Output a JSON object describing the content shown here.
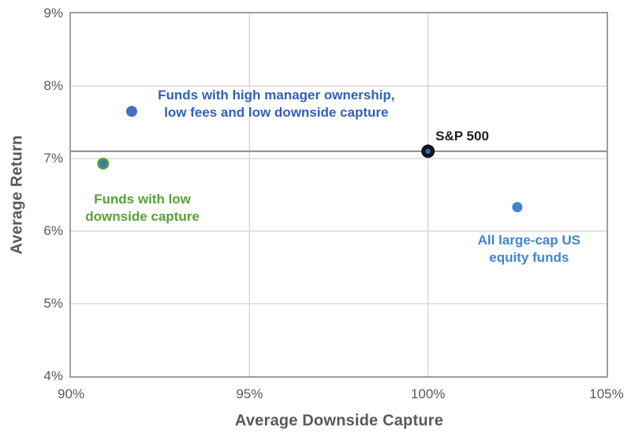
{
  "chart_data": {
    "type": "scatter",
    "xlabel": "Average Downside Capture",
    "ylabel": "Average Return",
    "xlim": [
      90,
      105
    ],
    "ylim": [
      4,
      9
    ],
    "xticks": [
      90,
      95,
      100,
      105
    ],
    "yticks": [
      4,
      5,
      6,
      7,
      8,
      9
    ],
    "tick_suffix": "%",
    "grid": true,
    "legend_position": "none",
    "colors": {
      "gridline": "#d9d9d9",
      "plot_border": "#9e9e9e",
      "axis_text": "#595959",
      "reference_line": "#848484"
    },
    "reference_line": {
      "axis": "y",
      "value": 7.1,
      "label_point": "sp500"
    },
    "points": [
      {
        "name": "funds-high-ownership",
        "x": 91.7,
        "y": 7.65,
        "marker": {
          "r": 7,
          "fill": "#4472c4"
        },
        "label_lines": [
          "Funds with high manager ownership,",
          "low fees and low downside capture"
        ],
        "label_color": "#2f5fbf",
        "label_anchor": {
          "x": 95.75,
          "y": 7.75,
          "align": "center"
        }
      },
      {
        "name": "funds-low-downside",
        "x": 90.9,
        "y": 6.93,
        "marker": {
          "r": 6,
          "fill": "#4472c4",
          "stroke": "#4fa32e",
          "stroke_width": 3
        },
        "label_lines": [
          "Funds with low",
          "downside capture"
        ],
        "label_color": "#54a334",
        "label_anchor": {
          "x": 92.0,
          "y": 6.31,
          "align": "center"
        }
      },
      {
        "name": "sp500",
        "x": 100,
        "y": 7.1,
        "marker": {
          "r": 8.5,
          "fill": "#141414",
          "inner_r": 3.2,
          "inner_fill": "#2e6bc8"
        },
        "label_lines": [
          "S&P 500"
        ],
        "label_color": "#1f1f1f",
        "label_anchor": {
          "x": 100.21,
          "y": 7.3,
          "align": "left"
        }
      },
      {
        "name": "all-large-cap",
        "x": 102.5,
        "y": 6.33,
        "marker": {
          "r": 6.5,
          "fill": "#3e86d2"
        },
        "label_lines": [
          "All large-cap US",
          "equity funds"
        ],
        "label_color": "#3e86d2",
        "label_anchor": {
          "x": 102.83,
          "y": 5.75,
          "align": "center"
        }
      }
    ]
  }
}
